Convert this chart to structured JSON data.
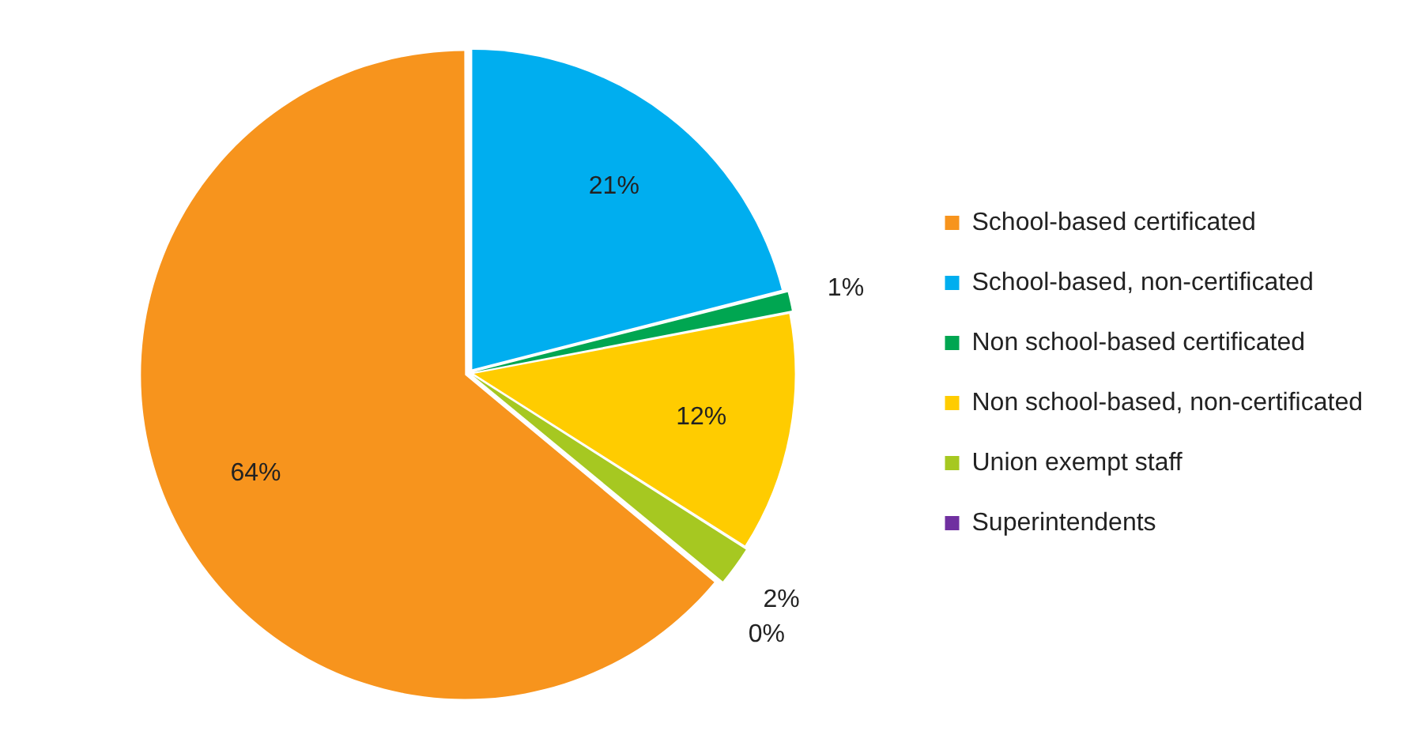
{
  "chart_data": {
    "type": "pie",
    "categories": [
      "School-based certificated",
      "School-based, non-certificated",
      "Non school-based certificated",
      "Non school-based, non-certificated",
      "Union exempt staff",
      "Superintendents"
    ],
    "values": [
      64,
      21,
      1,
      12,
      2,
      0
    ],
    "colors": [
      "#f7941d",
      "#00aeef",
      "#00a651",
      "#ffcc00",
      "#a6c821",
      "#7030a0"
    ],
    "value_labels": [
      "64%",
      "21%",
      "1%",
      "12%",
      "2%",
      "0%"
    ],
    "legend": "right"
  }
}
